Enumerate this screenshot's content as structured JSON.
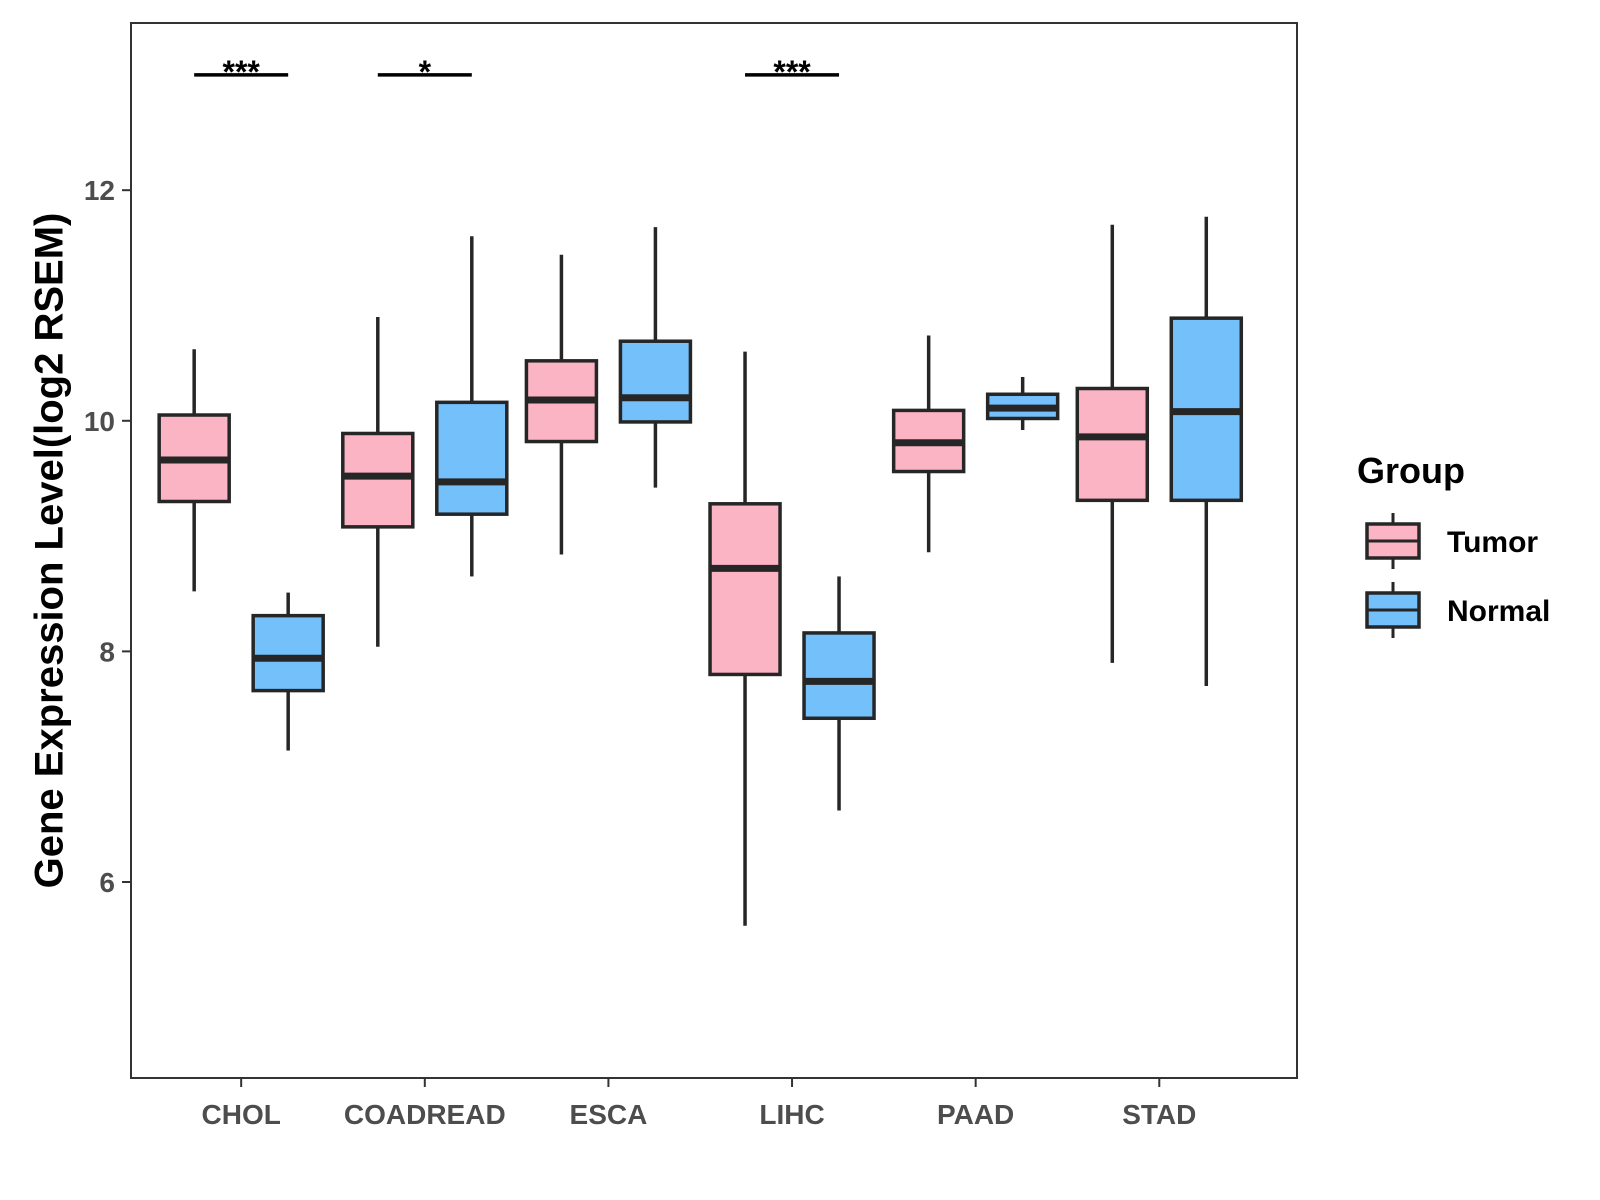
{
  "chart_data": {
    "type": "boxplot",
    "title": "",
    "xlabel": "",
    "ylabel": "Gene Expression Level(log2 RSEM)",
    "ylim": [
      4.3,
      13.45
    ],
    "yticks": [
      6,
      8,
      10,
      12
    ],
    "categories": [
      "CHOL",
      "COADREAD",
      "ESCA",
      "LIHC",
      "PAAD",
      "STAD"
    ],
    "legend": {
      "title": "Group",
      "position": "right"
    },
    "series": [
      {
        "name": "Tumor",
        "color": "#FBB4C4",
        "boxes": [
          {
            "lower_whisker": 8.52,
            "q1": 9.3,
            "median": 9.66,
            "q3": 10.05,
            "upper_whisker": 10.62
          },
          {
            "lower_whisker": 8.04,
            "q1": 9.08,
            "median": 9.52,
            "q3": 9.89,
            "upper_whisker": 10.9
          },
          {
            "lower_whisker": 8.84,
            "q1": 9.82,
            "median": 10.18,
            "q3": 10.52,
            "upper_whisker": 11.44
          },
          {
            "lower_whisker": 5.62,
            "q1": 7.8,
            "median": 8.72,
            "q3": 9.28,
            "upper_whisker": 10.6
          },
          {
            "lower_whisker": 8.86,
            "q1": 9.56,
            "median": 9.81,
            "q3": 10.09,
            "upper_whisker": 10.74
          },
          {
            "lower_whisker": 7.9,
            "q1": 9.31,
            "median": 9.86,
            "q3": 10.28,
            "upper_whisker": 11.7
          }
        ]
      },
      {
        "name": "Normal",
        "color": "#74C0FB",
        "boxes": [
          {
            "lower_whisker": 7.14,
            "q1": 7.66,
            "median": 7.94,
            "q3": 8.31,
            "upper_whisker": 8.51
          },
          {
            "lower_whisker": 8.65,
            "q1": 9.19,
            "median": 9.47,
            "q3": 10.16,
            "upper_whisker": 11.6
          },
          {
            "lower_whisker": 9.42,
            "q1": 9.99,
            "median": 10.2,
            "q3": 10.69,
            "upper_whisker": 11.68
          },
          {
            "lower_whisker": 6.62,
            "q1": 7.42,
            "median": 7.74,
            "q3": 8.16,
            "upper_whisker": 8.65
          },
          {
            "lower_whisker": 9.92,
            "q1": 10.02,
            "median": 10.11,
            "q3": 10.23,
            "upper_whisker": 10.38
          },
          {
            "lower_whisker": 7.7,
            "q1": 9.31,
            "median": 10.08,
            "q3": 10.89,
            "upper_whisker": 11.77
          }
        ]
      }
    ],
    "significance": [
      {
        "category": "CHOL",
        "label": "***",
        "y": 13.0
      },
      {
        "category": "COADREAD",
        "label": "*",
        "y": 13.0
      },
      {
        "category": "LIHC",
        "label": "***",
        "y": 13.0
      }
    ],
    "grid": false
  }
}
